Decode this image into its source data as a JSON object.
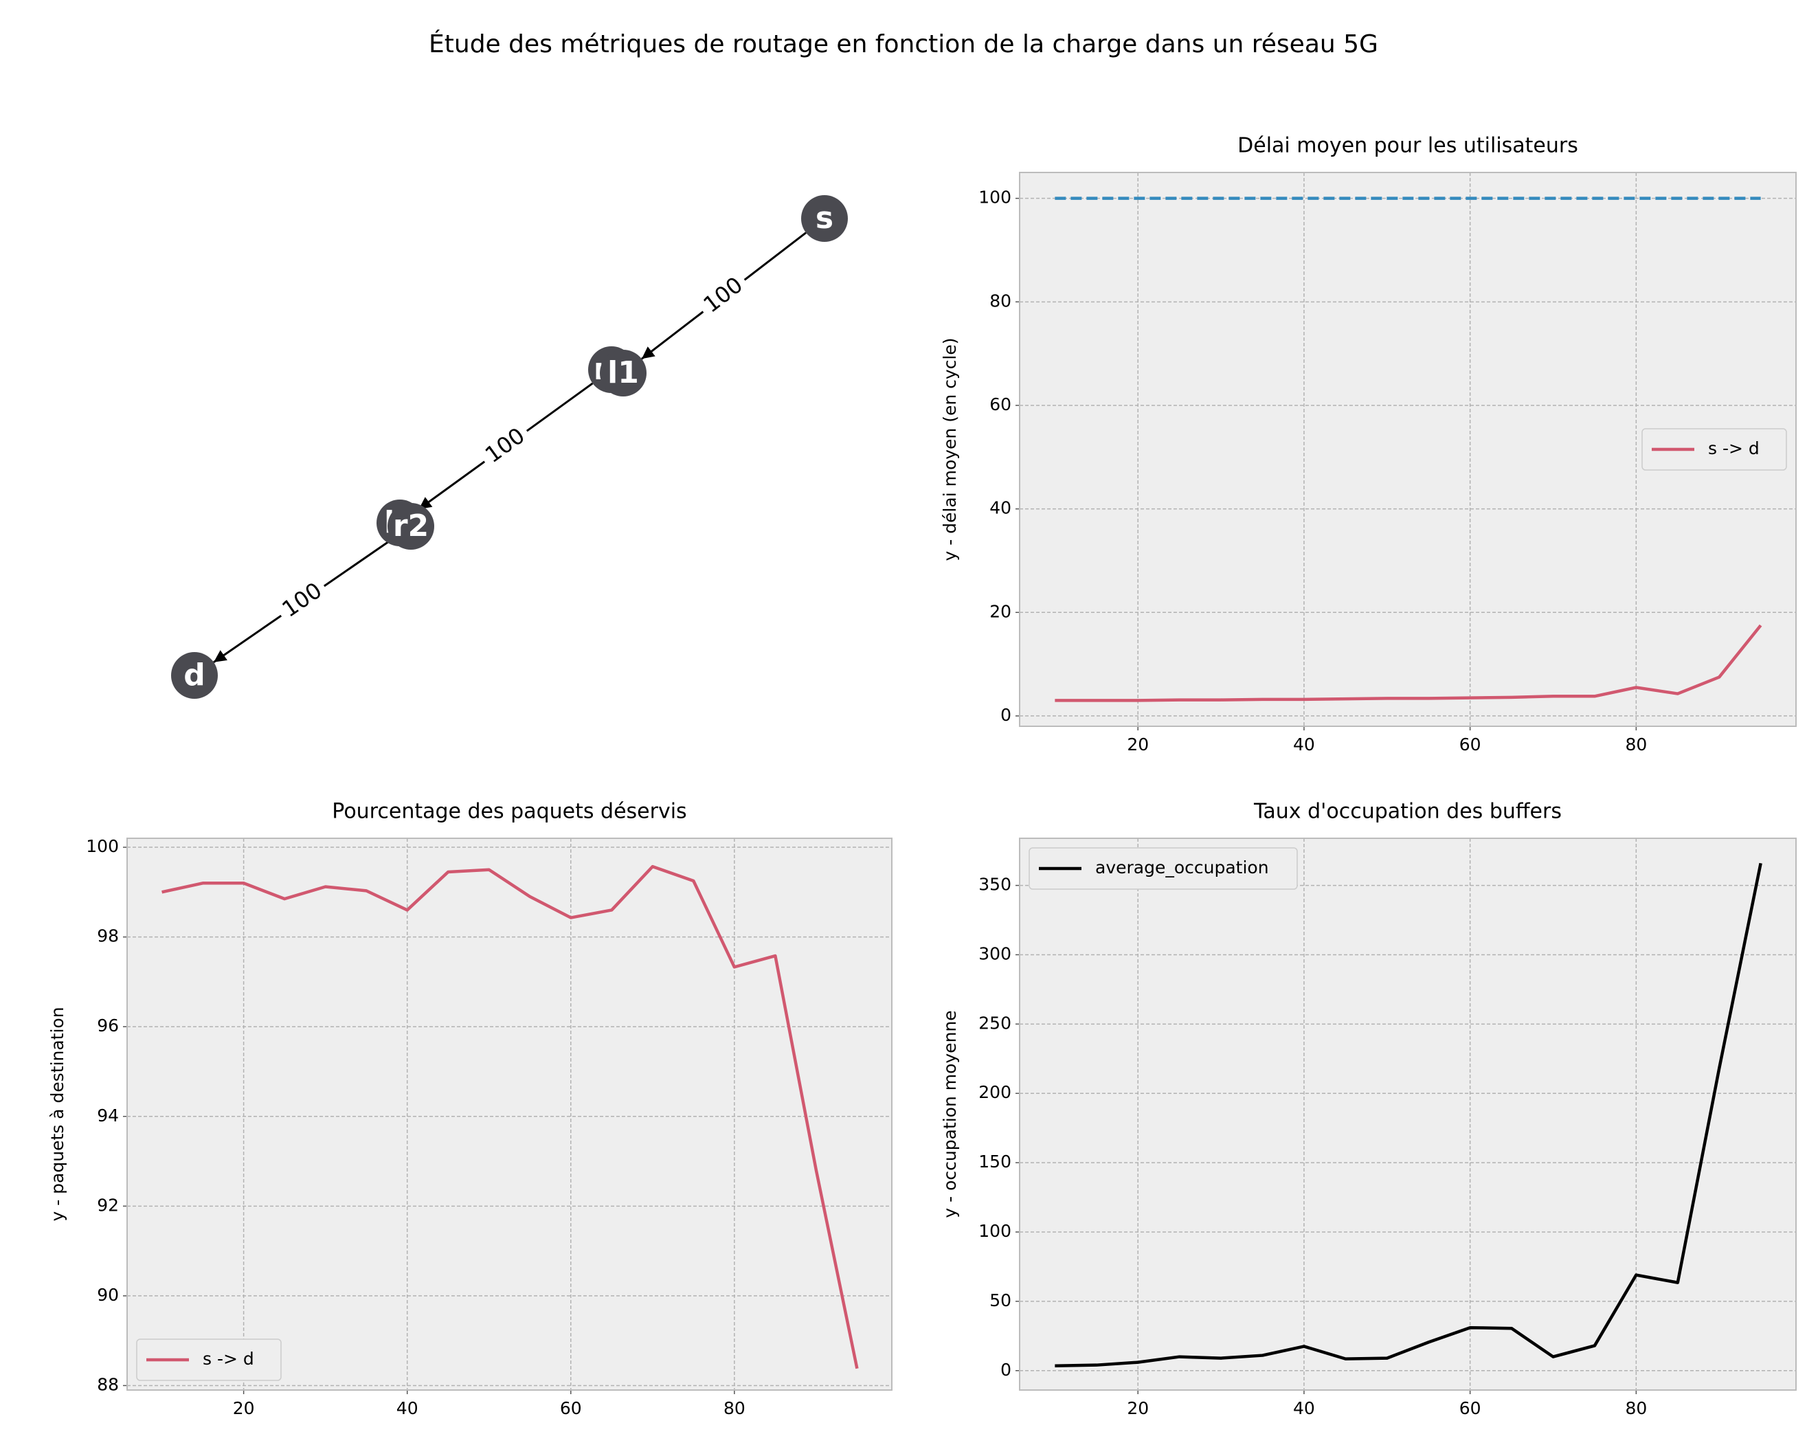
{
  "title": "Étude des métriques de routage en fonction de la charge dans un réseau 5G",
  "chart_data": [
    {
      "type": "graph",
      "nodes": [
        "s",
        "r1",
        "l1",
        "l2",
        "r2",
        "d"
      ],
      "edges": [
        {
          "from": 0,
          "to": 2,
          "label": 100
        },
        {
          "from": 1,
          "to": 3,
          "label": 100
        },
        {
          "from": 4,
          "to": 5,
          "label": 100
        }
      ]
    },
    {
      "type": "line",
      "title": "Délai moyen pour les utilisateurs",
      "ylabel": "y - délai moyen (en cycle)",
      "x": [
        10,
        15,
        20,
        25,
        30,
        35,
        40,
        45,
        50,
        55,
        60,
        65,
        70,
        75,
        80,
        85,
        90,
        95
      ],
      "series": [
        {
          "color": "#348abd",
          "dash": true,
          "values": [
            100,
            100,
            100,
            100,
            100,
            100,
            100,
            100,
            100,
            100,
            100,
            100,
            100,
            100,
            100,
            100,
            100,
            100
          ]
        },
        {
          "name": "s -> d",
          "color": "#d1586f",
          "values": [
            3,
            3,
            3,
            3.1,
            3.1,
            3.2,
            3.2,
            3.3,
            3.4,
            3.4,
            3.5,
            3.6,
            3.8,
            3.8,
            5.5,
            4.3,
            7.5,
            17.5
          ]
        }
      ],
      "xlim": [
        5.75,
        99.25
      ],
      "ylim": [
        -2,
        105
      ],
      "xticks": [
        20,
        40,
        60,
        80
      ],
      "yticks": [
        0,
        20,
        40,
        60,
        80,
        100
      ],
      "grid": true,
      "legend": "center right"
    },
    {
      "type": "line",
      "title": "Pourcentage des paquets déservis",
      "ylabel": "y - paquets à destination",
      "x": [
        10,
        15,
        20,
        25,
        30,
        35,
        40,
        45,
        50,
        55,
        60,
        65,
        70,
        75,
        80,
        85,
        90,
        95
      ],
      "series": [
        {
          "name": "s -> d",
          "color": "#d1586f",
          "values": [
            99.0,
            99.2,
            99.2,
            98.85,
            99.12,
            99.03,
            98.6,
            99.45,
            99.5,
            98.9,
            98.43,
            98.6,
            99.57,
            99.25,
            97.33,
            97.58,
            92.8,
            88.38
          ]
        }
      ],
      "xlim": [
        5.75,
        99.25
      ],
      "ylim": [
        87.9,
        100.2
      ],
      "xticks": [
        20,
        40,
        60,
        80
      ],
      "yticks": [
        88,
        90,
        92,
        94,
        96,
        98,
        100
      ],
      "grid": true,
      "legend": "lower left"
    },
    {
      "type": "line",
      "title": "Taux d'occupation des buffers",
      "ylabel": "y - occupation moyenne",
      "x": [
        10,
        15,
        20,
        25,
        30,
        35,
        40,
        45,
        50,
        55,
        60,
        65,
        70,
        75,
        80,
        85,
        90,
        95
      ],
      "series": [
        {
          "name": "average_occupation",
          "color": "#000000",
          "values": [
            3.5,
            4,
            6,
            10,
            9,
            11,
            17.5,
            8.5,
            9,
            20.5,
            31,
            30.5,
            10,
            18,
            69,
            63.5,
            218,
            366
          ]
        }
      ],
      "xlim": [
        5.75,
        99.25
      ],
      "ylim": [
        -14,
        384
      ],
      "xticks": [
        20,
        40,
        60,
        80
      ],
      "yticks": [
        0,
        50,
        100,
        150,
        200,
        250,
        300,
        350
      ],
      "grid": true,
      "legend": "upper left"
    }
  ]
}
